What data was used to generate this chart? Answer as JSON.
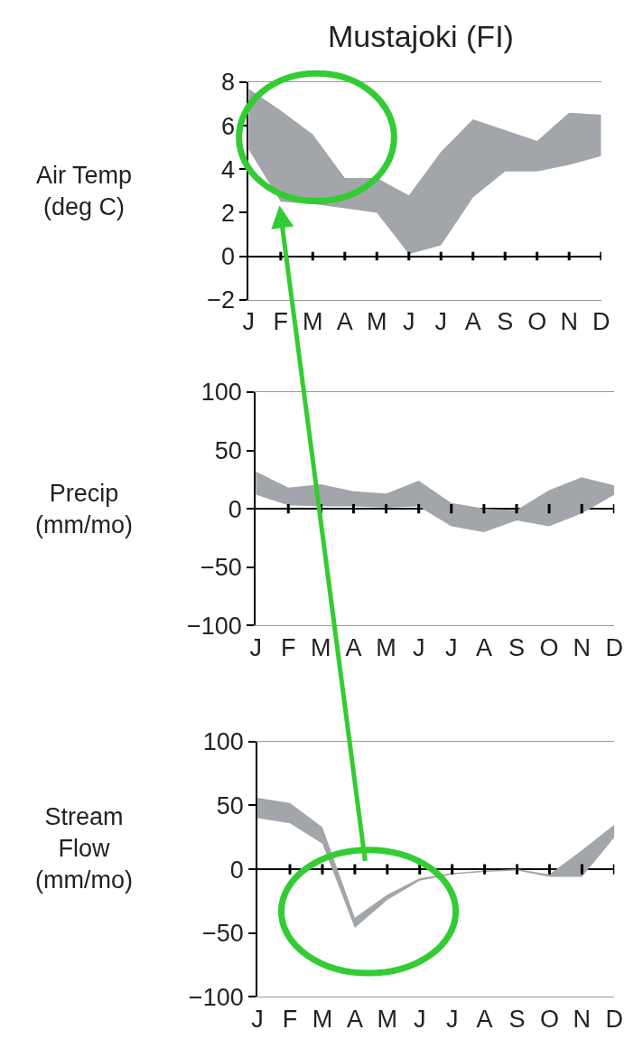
{
  "chart_data": [
    {
      "type": "area",
      "title": "Mustajoki (FI)",
      "ylabel": "Air Temp\n(deg C)",
      "categories": [
        "J",
        "F",
        "M",
        "A",
        "M",
        "J",
        "J",
        "A",
        "S",
        "O",
        "N",
        "D"
      ],
      "ylim": [
        -2,
        8
      ],
      "yticks": [
        {
          "value": -2,
          "label": "−2"
        },
        0,
        2,
        4,
        6,
        8
      ],
      "series": [
        {
          "color": "#a2a5a9",
          "values": [
            null,
            null,
            null,
            null,
            null,
            null,
            null,
            null,
            null,
            null,
            null,
            null
          ],
          "lower": [
            4.9,
            2.5,
            2.4,
            2.2,
            2.0,
            0.1,
            0.5,
            2.7,
            3.9,
            3.9,
            4.2,
            4.6
          ],
          "upper": [
            7.7,
            6.7,
            5.6,
            3.6,
            3.6,
            2.8,
            4.8,
            6.3,
            5.8,
            5.3,
            6.6,
            6.5
          ]
        }
      ]
    },
    {
      "type": "area",
      "ylabel": "Precip\n(mm/mo)",
      "categories": [
        "J",
        "F",
        "M",
        "A",
        "M",
        "J",
        "J",
        "A",
        "S",
        "O",
        "N",
        "D"
      ],
      "ylim": [
        -100,
        100
      ],
      "yticks": [
        {
          "value": -100,
          "label": "−100"
        },
        {
          "value": -50,
          "label": "−50"
        },
        0,
        50,
        100
      ],
      "series": [
        {
          "color": "#a2a5a9",
          "values": [
            null,
            null,
            null,
            null,
            null,
            null,
            null,
            null,
            null,
            null,
            null,
            null
          ],
          "lower": [
            12,
            3,
            2,
            2,
            1,
            2,
            -15,
            -20,
            -10,
            -15,
            -4,
            12
          ],
          "upper": [
            32,
            18,
            21,
            15,
            13,
            24,
            5,
            0,
            -1,
            16,
            27,
            20
          ]
        }
      ]
    },
    {
      "type": "area",
      "ylabel": "Stream\nFlow\n(mm/mo)",
      "categories": [
        "J",
        "F",
        "M",
        "A",
        "M",
        "J",
        "J",
        "A",
        "S",
        "O",
        "N",
        "D"
      ],
      "ylim": [
        -100,
        100
      ],
      "yticks": [
        {
          "value": -100,
          "label": "−100"
        },
        {
          "value": -50,
          "label": "−50"
        },
        0,
        50,
        100
      ],
      "series": [
        {
          "color": "#a2a5a9",
          "values": [
            null,
            null,
            null,
            null,
            null,
            null,
            null,
            null,
            null,
            null,
            null,
            null
          ],
          "lower": [
            40,
            36,
            20,
            -46,
            -24,
            -9,
            -4,
            -2,
            -1,
            -6,
            -6,
            25
          ],
          "upper": [
            56,
            52,
            33,
            -38,
            -20,
            -7,
            -3,
            -1,
            0,
            -4,
            15,
            35
          ]
        }
      ]
    }
  ]
}
